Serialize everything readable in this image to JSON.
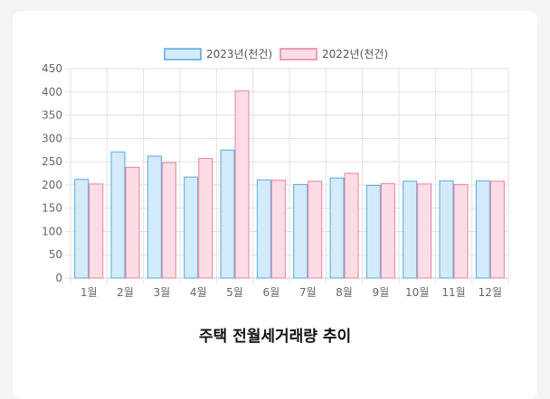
{
  "chart_data": {
    "type": "bar",
    "title": "주택 전월세거래량 추이",
    "categories": [
      "1월",
      "2월",
      "3월",
      "4월",
      "5월",
      "6월",
      "7월",
      "8월",
      "9월",
      "10월",
      "11월",
      "12월"
    ],
    "series": [
      {
        "name": "2023년(천건)",
        "values": [
          212,
          271,
          262,
          217,
          275,
          211,
          201,
          215,
          199,
          208,
          209,
          209
        ],
        "color": "#5aa7de",
        "fill": "#d3ebfa"
      },
      {
        "name": "2022년(천건)",
        "values": [
          202,
          238,
          248,
          257,
          402,
          210,
          208,
          225,
          203,
          202,
          201,
          208
        ],
        "color": "#e8829c",
        "fill": "#fddde5"
      }
    ],
    "ylim": [
      0,
      450
    ],
    "yticks": [
      0,
      50,
      100,
      150,
      200,
      250,
      300,
      350,
      400,
      450
    ],
    "grid": true,
    "legend_position": "top-center"
  }
}
